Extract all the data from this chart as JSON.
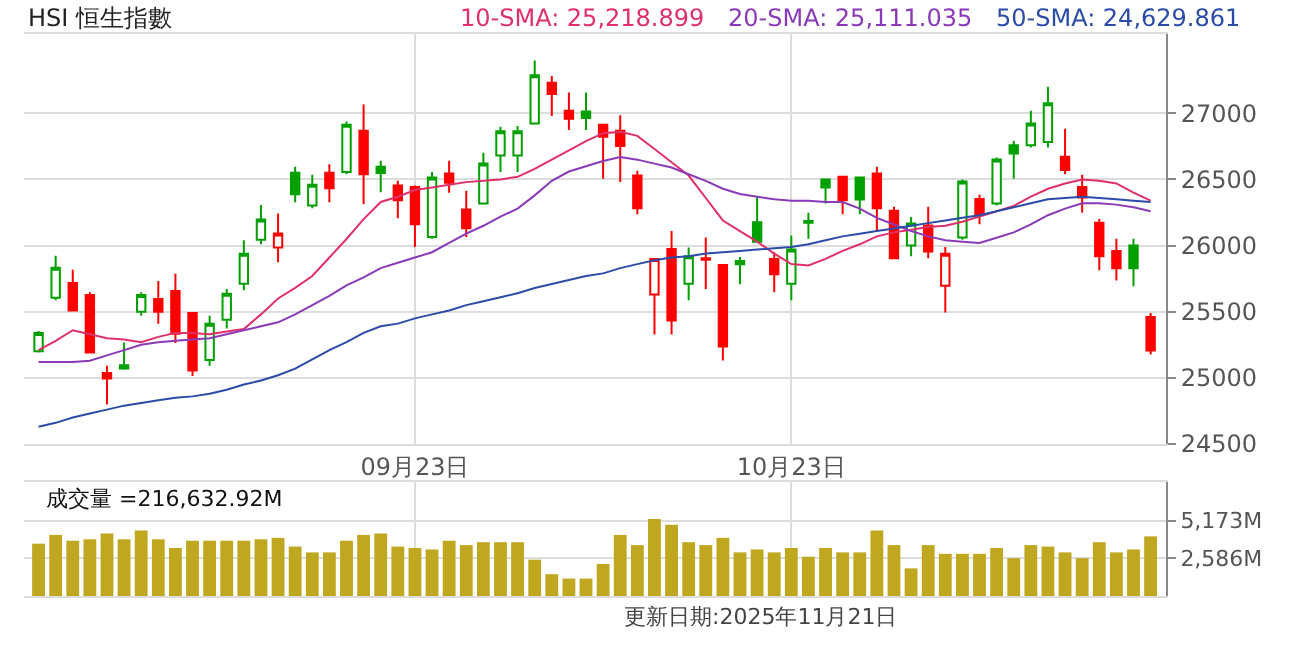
{
  "chart_data": [
    {
      "type": "candlestick",
      "title": "HSI 恒生指數",
      "categories": [
        null,
        null,
        null,
        null,
        null,
        null,
        null,
        null,
        null,
        null,
        null,
        null,
        null,
        null,
        null,
        null,
        null,
        null,
        null,
        null,
        null,
        null,
        "09月23日",
        null,
        null,
        null,
        null,
        null,
        null,
        null,
        null,
        null,
        null,
        null,
        null,
        null,
        null,
        null,
        null,
        null,
        null,
        null,
        null,
        null,
        "10月23日",
        null,
        null,
        null,
        null,
        null,
        null,
        null,
        null,
        null,
        null,
        null,
        null,
        null,
        null,
        null,
        null,
        null,
        null,
        null,
        null,
        null
      ],
      "ohlc": [
        [
          25202,
          25354,
          25192,
          25339
        ],
        [
          25606,
          25924,
          25586,
          25833
        ],
        [
          25717,
          25818,
          25510,
          25510
        ],
        [
          25626,
          25647,
          25192,
          25192
        ],
        [
          25036,
          25091,
          24798,
          24995
        ],
        [
          25096,
          25268,
          25061,
          25071
        ],
        [
          25500,
          25647,
          25470,
          25626
        ],
        [
          25596,
          25732,
          25409,
          25500
        ],
        [
          25657,
          25788,
          25263,
          25333
        ],
        [
          25490,
          25490,
          25015,
          25056
        ],
        [
          25136,
          25470,
          25091,
          25409
        ],
        [
          25440,
          25672,
          25374,
          25636
        ],
        [
          25712,
          26040,
          25662,
          25939
        ],
        [
          26045,
          26308,
          26010,
          26197
        ],
        [
          25985,
          26242,
          25874,
          26091
        ],
        [
          26551,
          26596,
          26328,
          26389
        ],
        [
          26303,
          26535,
          26283,
          26460
        ],
        [
          26551,
          26616,
          26328,
          26434
        ],
        [
          26556,
          26939,
          26540,
          26914
        ],
        [
          26869,
          27066,
          26313,
          26540
        ],
        [
          26596,
          26641,
          26404,
          26550
        ],
        [
          26455,
          26490,
          26207,
          26343
        ],
        [
          26444,
          26455,
          25990,
          26162
        ],
        [
          26066,
          26556,
          26051,
          26515
        ],
        [
          26545,
          26641,
          26399,
          26475
        ],
        [
          26273,
          26414,
          26066,
          26131
        ],
        [
          26318,
          26702,
          26318,
          26621
        ],
        [
          26682,
          26899,
          26556,
          26864
        ],
        [
          26682,
          26904,
          26556,
          26864
        ],
        [
          26924,
          27399,
          26924,
          27288
        ],
        [
          27232,
          27283,
          26980,
          27146
        ],
        [
          27020,
          27157,
          26874,
          26960
        ],
        [
          27015,
          27157,
          26874,
          26965
        ],
        [
          26914,
          26914,
          26505,
          26823
        ],
        [
          26869,
          26985,
          26480,
          26753
        ],
        [
          26530,
          26566,
          26237,
          26283
        ],
        [
          25631,
          25899,
          25328,
          25899
        ],
        [
          25975,
          26111,
          25328,
          25434
        ],
        [
          25712,
          25985,
          25586,
          25919
        ],
        [
          25904,
          26061,
          25672,
          25894
        ],
        [
          25854,
          25854,
          25131,
          25238
        ],
        [
          25884,
          25914,
          25707,
          25859
        ],
        [
          26177,
          26369,
          26030,
          26030
        ],
        [
          25899,
          25950,
          25647,
          25783
        ],
        [
          25712,
          26076,
          25586,
          25970
        ],
        [
          26187,
          26248,
          26051,
          26172
        ],
        [
          26500,
          26500,
          26318,
          26439
        ],
        [
          26520,
          26520,
          26237,
          26343
        ],
        [
          26515,
          26520,
          26237,
          26348
        ],
        [
          26545,
          26596,
          26111,
          26283
        ],
        [
          26263,
          26293,
          25904,
          25904
        ],
        [
          26000,
          26217,
          25919,
          26167
        ],
        [
          26152,
          26293,
          25904,
          25955
        ],
        [
          25697,
          25990,
          25495,
          25939
        ],
        [
          26061,
          26500,
          26045,
          26485
        ],
        [
          26353,
          26384,
          26162,
          26237
        ],
        [
          26318,
          26667,
          26303,
          26652
        ],
        [
          26758,
          26793,
          26505,
          26697
        ],
        [
          26758,
          27020,
          26742,
          26924
        ],
        [
          26783,
          27202,
          26742,
          27076
        ],
        [
          26672,
          26884,
          26540,
          26571
        ],
        [
          26444,
          26535,
          26248,
          26364
        ],
        [
          26172,
          26202,
          25813,
          25919
        ],
        [
          25960,
          26051,
          25737,
          25828
        ],
        [
          26000,
          26051,
          25692,
          25828
        ],
        [
          25460,
          25490,
          25177,
          25207
        ]
      ],
      "colors": [
        "#00a000",
        "#00a000",
        "#ff0000",
        "#ff0000",
        "#ff0000",
        "#00a000",
        "#00a000",
        "#ff0000",
        "#ff0000",
        "#ff0000",
        "#00a000",
        "#00a000",
        "#00a000",
        "#00a000",
        "#ff0000",
        "#00a000",
        "#00a000",
        "#ff0000",
        "#00a000",
        "#ff0000",
        "#00a000",
        "#ff0000",
        "#ff0000",
        "#00a000",
        "#ff0000",
        "#ff0000",
        "#00a000",
        "#00a000",
        "#00a000",
        "#00a000",
        "#ff0000",
        "#ff0000",
        "#00a000",
        "#ff0000",
        "#ff0000",
        "#ff0000",
        "#ff0000",
        "#ff0000",
        "#00a000",
        "#ff0000",
        "#ff0000",
        "#00a000",
        "#00a000",
        "#ff0000",
        "#00a000",
        "#00a000",
        "#00a000",
        "#ff0000",
        "#00a000",
        "#ff0000",
        "#ff0000",
        "#00a000",
        "#ff0000",
        "#ff0000",
        "#00a000",
        "#ff0000",
        "#00a000",
        "#00a000",
        "#00a000",
        "#00a000",
        "#ff0000",
        "#ff0000",
        "#ff0000",
        "#ff0000",
        "#00a000",
        "#ff0000"
      ],
      "series": [
        {
          "type": "line",
          "name": "10-SMA: 25,218.899",
          "color": "#e0306a",
          "values": [
            25210,
            25280,
            25360,
            25330,
            25300,
            25290,
            25270,
            25310,
            25340,
            25340,
            25330,
            25350,
            25370,
            25480,
            25600,
            25680,
            25770,
            25910,
            26050,
            26200,
            26330,
            26370,
            26420,
            26440,
            26460,
            26480,
            26490,
            26500,
            26520,
            26580,
            26650,
            26720,
            26790,
            26850,
            26860,
            26830,
            26730,
            26630,
            26530,
            26360,
            26190,
            26110,
            26030,
            25940,
            25860,
            25850,
            25900,
            25960,
            26010,
            26070,
            26100,
            26120,
            26140,
            26150,
            26180,
            26220,
            26260,
            26300,
            26370,
            26430,
            26470,
            26500,
            26490,
            26470,
            26400,
            26340
          ]
        },
        {
          "type": "line",
          "name": "20-SMA: 25,111.035",
          "color": "#8a3ab9",
          "values": [
            25120,
            25120,
            25120,
            25130,
            25170,
            25210,
            25250,
            25270,
            25280,
            25290,
            25300,
            25330,
            25360,
            25390,
            25420,
            25480,
            25550,
            25620,
            25700,
            25760,
            25830,
            25870,
            25910,
            25950,
            26020,
            26090,
            26150,
            26220,
            26280,
            26380,
            26490,
            26560,
            26600,
            26640,
            26670,
            26650,
            26620,
            26590,
            26540,
            26490,
            26430,
            26390,
            26370,
            26350,
            26340,
            26340,
            26330,
            26330,
            26280,
            26210,
            26160,
            26110,
            26070,
            26040,
            26030,
            26020,
            26060,
            26100,
            26160,
            26230,
            26280,
            26320,
            26320,
            26310,
            26290,
            26260
          ]
        },
        {
          "type": "line",
          "name": "50-SMA: 24,629.861",
          "color": "#2b4ba8",
          "values": [
            24630,
            24660,
            24700,
            24730,
            24760,
            24790,
            24810,
            24830,
            24850,
            24860,
            24880,
            24910,
            24950,
            24980,
            25020,
            25070,
            25140,
            25210,
            25270,
            25340,
            25390,
            25410,
            25450,
            25480,
            25510,
            25550,
            25580,
            25610,
            25640,
            25680,
            25710,
            25740,
            25770,
            25790,
            25830,
            25860,
            25890,
            25910,
            25920,
            25940,
            25950,
            25960,
            25970,
            25980,
            25990,
            26010,
            26040,
            26070,
            26090,
            26110,
            26130,
            26150,
            26170,
            26190,
            26210,
            26230,
            26260,
            26290,
            26320,
            26350,
            26360,
            26370,
            26360,
            26350,
            26340,
            26330
          ]
        }
      ],
      "ylim": [
        24500,
        27600
      ],
      "yticks": [
        24500,
        25000,
        25500,
        26000,
        26500,
        27000
      ],
      "grid": true,
      "legend": false,
      "marker": "none",
      "line_style": "solid"
    },
    {
      "type": "bar",
      "color": "#bfa720",
      "categories": [
        null,
        null,
        null,
        null,
        null,
        null,
        null,
        null,
        null,
        null,
        null,
        null,
        null,
        null,
        null,
        null,
        null,
        null,
        null,
        null,
        null,
        null,
        null,
        null,
        null,
        null,
        null,
        null,
        null,
        null,
        null,
        null,
        null,
        null,
        null,
        null,
        null,
        null,
        null,
        null,
        null,
        null,
        null,
        null,
        null,
        null,
        null,
        null,
        null,
        null,
        null,
        null,
        null,
        null,
        null,
        null,
        null,
        null,
        null,
        null,
        null,
        null,
        null,
        null,
        null,
        null
      ],
      "values": [
        3600,
        4200,
        3800,
        3900,
        4300,
        3900,
        4500,
        3900,
        3300,
        3800,
        3800,
        3800,
        3800,
        3900,
        4000,
        3400,
        3000,
        3000,
        3800,
        4200,
        4300,
        3400,
        3300,
        3200,
        3800,
        3500,
        3700,
        3700,
        3700,
        2500,
        1500,
        1200,
        1200,
        2200,
        4200,
        3500,
        5300,
        4900,
        3700,
        3500,
        4000,
        3000,
        3200,
        3000,
        3300,
        2700,
        3300,
        3000,
        3000,
        4500,
        3500,
        1900,
        3500,
        2900,
        2900,
        2900,
        3300,
        2600,
        3500,
        3400,
        3000,
        2600,
        3700,
        3000,
        3200,
        4100
      ],
      "ylim": [
        0,
        7840
      ],
      "yticks": [
        {
          "value": 5173,
          "label": "5,173M"
        },
        {
          "value": 2586,
          "label": "2,586M"
        }
      ],
      "tick_labels": "y",
      "grid": true,
      "annotations": [
        "成交量 =216,632.92M",
        "更新日期:2025年11月21日"
      ]
    }
  ]
}
